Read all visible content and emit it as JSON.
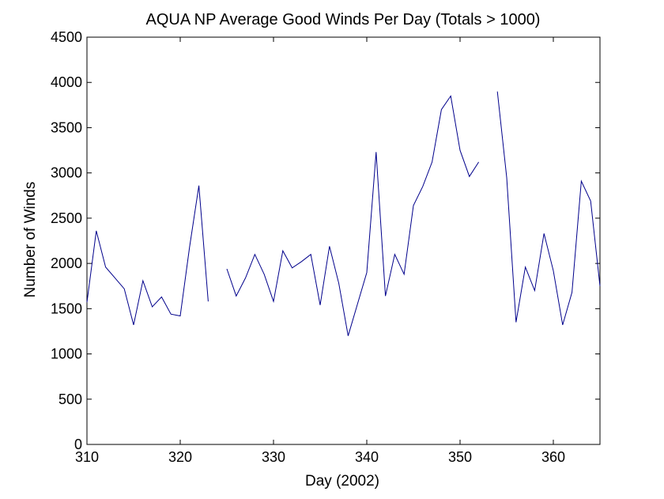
{
  "chart_data": {
    "type": "line",
    "title": "AQUA NP Average Good Winds Per Day (Totals > 1000)",
    "xlabel": "Day (2002)",
    "ylabel": "Number of Winds",
    "xlim": [
      310,
      365
    ],
    "ylim": [
      0,
      4500
    ],
    "xticks": [
      310,
      320,
      330,
      340,
      350,
      360
    ],
    "yticks": [
      0,
      500,
      1000,
      1500,
      2000,
      2500,
      3000,
      3500,
      4000,
      4500
    ],
    "grid": false,
    "line_color": "#00008b",
    "series": [
      {
        "segments": [
          {
            "x": [
              310,
              311,
              312,
              313,
              314,
              315,
              316,
              317,
              318,
              319,
              320,
              321,
              322,
              323
            ],
            "y": [
              1570,
              2360,
              1960,
              1840,
              1720,
              1320,
              1810,
              1520,
              1630,
              1440,
              1420,
              2180,
              2860,
              1580
            ]
          },
          {
            "x": [
              325,
              326,
              327,
              328,
              329,
              330,
              331,
              332,
              333,
              334,
              335,
              336,
              337,
              338,
              339,
              340,
              341,
              342,
              343,
              344,
              345,
              346,
              347,
              348,
              349,
              350,
              351,
              352
            ],
            "y": [
              1940,
              1640,
              1840,
              2100,
              1880,
              1580,
              2140,
              1950,
              2020,
              2100,
              1540,
              2190,
              1780,
              1200,
              1550,
              1900,
              3230,
              1640,
              2100,
              1880,
              2640,
              2850,
              3120,
              3700,
              3850,
              3250,
              2960,
              3120
            ]
          },
          {
            "x": [
              354,
              355,
              356,
              357,
              358,
              359,
              360,
              361,
              362,
              363,
              364,
              365
            ],
            "y": [
              3900,
              2950,
              1350,
              1960,
              1700,
              2330,
              1920,
              1320,
              1680,
              2910,
              2690,
              1750
            ]
          }
        ]
      }
    ]
  }
}
